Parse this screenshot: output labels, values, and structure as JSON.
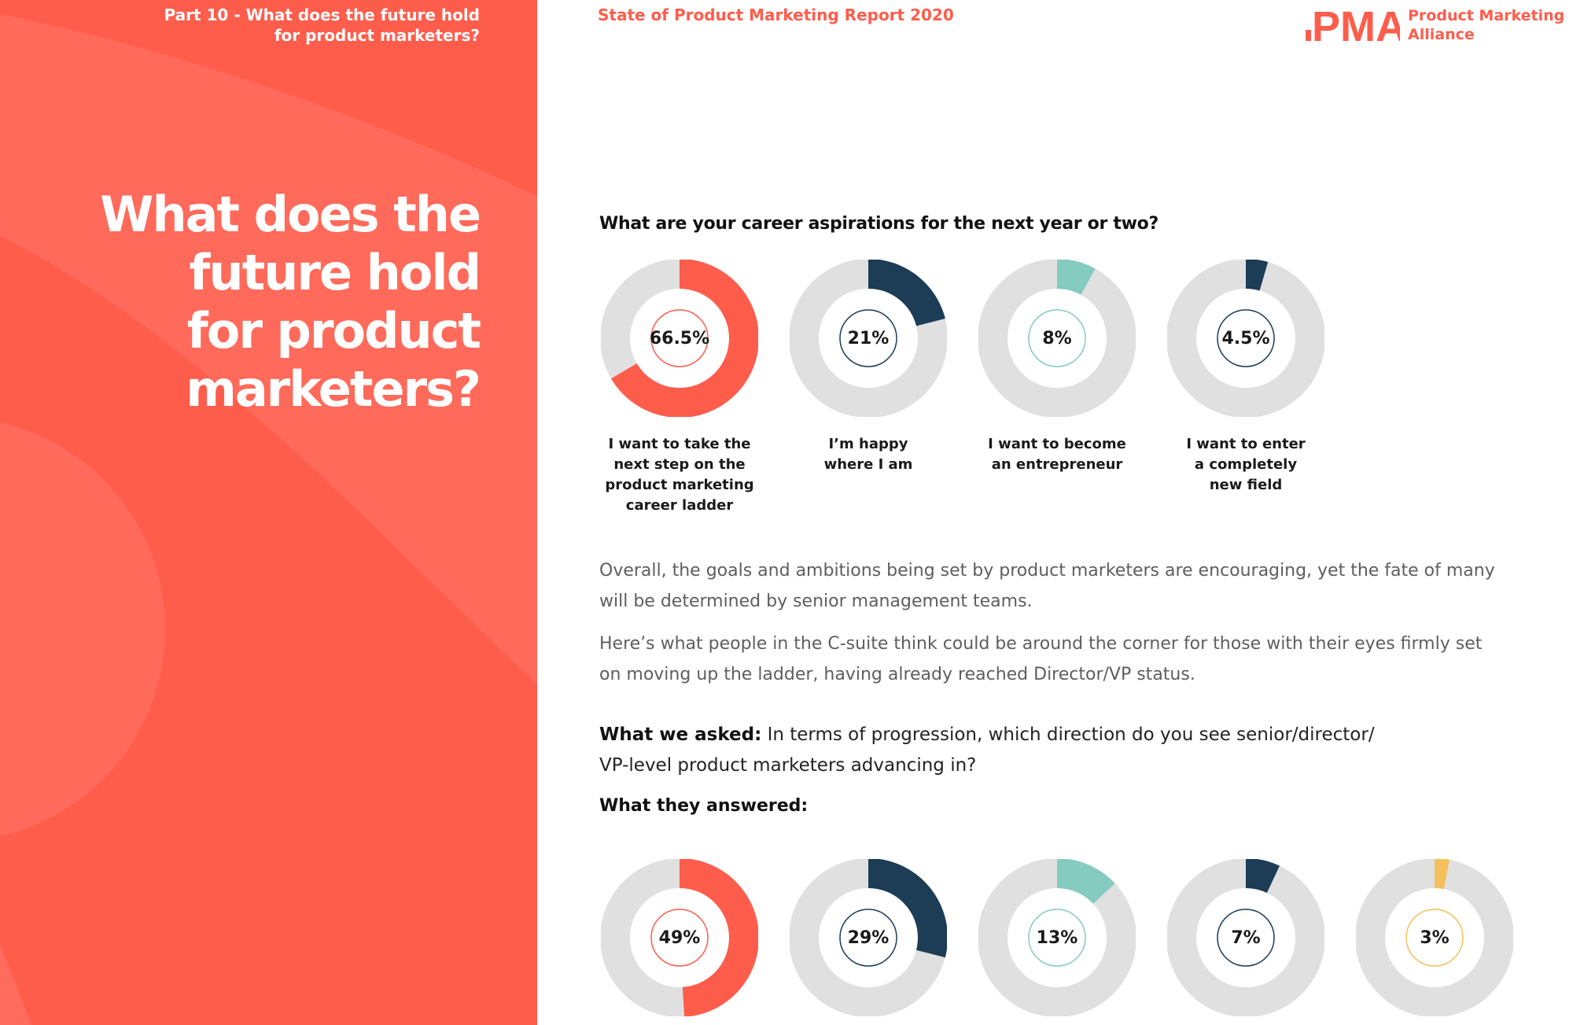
{
  "sidebar": {
    "part_label_line1": "Part 10 - What does the future hold",
    "part_label_line2": "for product marketers?",
    "hero_title_lines": [
      "What does the",
      "future hold",
      "for product",
      "marketers?"
    ]
  },
  "header": {
    "report_title": "State of Product Marketing Report 2020",
    "brand_line1": "Product Marketing",
    "brand_line2": "Alliance",
    "logo_text": "PMA"
  },
  "colors": {
    "coral": "#ff5d4c",
    "navy": "#1d3c55",
    "teal": "#85cbbf",
    "yellow": "#f4c05c",
    "track": "#e0e0e0"
  },
  "section1": {
    "question": "What are your career aspirations for the next year or two?"
  },
  "body": {
    "paragraph1": "Overall, the goals and ambitions being set by product marketers are encouraging, yet the fate of many will be determined by senior management teams.",
    "paragraph2": "Here’s what people in the C-suite think could be around the corner for those with their eyes firmly set on moving up the ladder, having already reached Director/VP status.",
    "asked_label": "What we asked:",
    "asked_text": "In terms of progression, which direction do you see senior/director/ VP-level product marketers advancing in?",
    "answered_label": "What they answered:"
  },
  "chart_data": [
    {
      "type": "pie",
      "title": "What are your career aspirations for the next year or two?",
      "series": [
        {
          "label_lines": [
            "I want to take the",
            "next step on the",
            "product marketing",
            "career ladder"
          ],
          "value": 66.5,
          "display": "66.5%",
          "color": "#ff5d4c"
        },
        {
          "label_lines": [
            "I’m happy",
            "where I am"
          ],
          "value": 21,
          "display": "21%",
          "color": "#1d3c55"
        },
        {
          "label_lines": [
            "I want to become",
            "an entrepreneur"
          ],
          "value": 8,
          "display": "8%",
          "color": "#85cbbf"
        },
        {
          "label_lines": [
            "I want to enter",
            "a completely",
            "new field"
          ],
          "value": 4.5,
          "display": "4.5%",
          "color": "#1d3c55"
        }
      ]
    },
    {
      "type": "pie",
      "title": "What they answered:",
      "series": [
        {
          "value": 49,
          "display": "49%",
          "color": "#ff5d4c"
        },
        {
          "value": 29,
          "display": "29%",
          "color": "#1d3c55"
        },
        {
          "value": 13,
          "display": "13%",
          "color": "#85cbbf"
        },
        {
          "value": 7,
          "display": "7%",
          "color": "#1d3c55"
        },
        {
          "value": 3,
          "display": "3%",
          "color": "#f4c05c"
        }
      ]
    }
  ]
}
